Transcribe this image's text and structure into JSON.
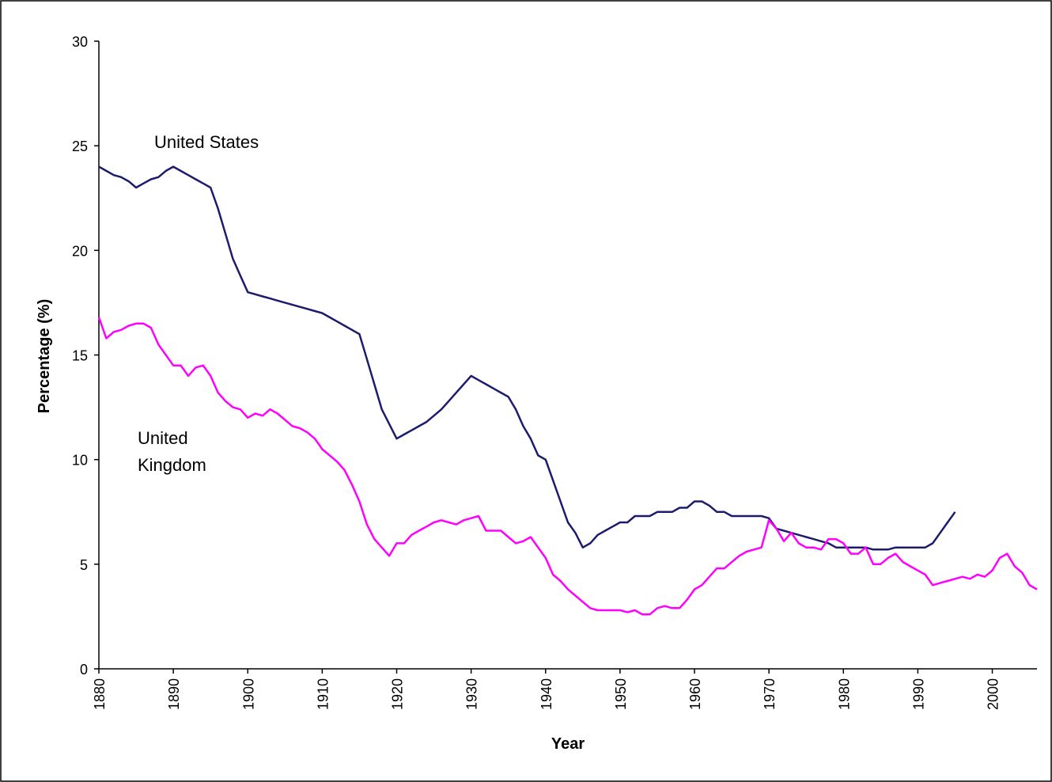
{
  "chart_data": {
    "type": "line",
    "xlabel": "Year",
    "ylabel": "Percentage (%)",
    "annotations": [
      "United States",
      "United",
      "Kingdom"
    ],
    "x": [
      1880,
      1881,
      1882,
      1883,
      1884,
      1885,
      1886,
      1887,
      1888,
      1889,
      1890,
      1891,
      1892,
      1893,
      1894,
      1895,
      1896,
      1897,
      1898,
      1899,
      1900,
      1901,
      1902,
      1903,
      1904,
      1905,
      1906,
      1907,
      1908,
      1909,
      1910,
      1911,
      1912,
      1913,
      1914,
      1915,
      1916,
      1917,
      1918,
      1919,
      1920,
      1921,
      1922,
      1923,
      1924,
      1925,
      1926,
      1927,
      1928,
      1929,
      1930,
      1931,
      1932,
      1933,
      1934,
      1935,
      1936,
      1937,
      1938,
      1939,
      1940,
      1941,
      1942,
      1943,
      1944,
      1945,
      1946,
      1947,
      1948,
      1949,
      1950,
      1951,
      1952,
      1953,
      1954,
      1955,
      1956,
      1957,
      1958,
      1959,
      1960,
      1961,
      1962,
      1963,
      1964,
      1965,
      1966,
      1967,
      1968,
      1969,
      1970,
      1971,
      1972,
      1973,
      1974,
      1975,
      1976,
      1977,
      1978,
      1979,
      1980,
      1981,
      1982,
      1983,
      1984,
      1985,
      1986,
      1987,
      1988,
      1989,
      1990,
      1991,
      1992,
      1993,
      1994,
      1995,
      1996,
      1997,
      1998,
      1999,
      2000,
      2001,
      2002,
      2003,
      2004,
      2005,
      2006
    ],
    "series": [
      {
        "name": "United States",
        "color": "#1c1c6e",
        "values": [
          24.0,
          23.8,
          23.6,
          23.5,
          23.3,
          23.0,
          23.2,
          23.4,
          23.5,
          23.8,
          24.0,
          23.8,
          23.6,
          23.4,
          23.2,
          23.0,
          22.0,
          20.8,
          19.6,
          18.8,
          18.0,
          17.9,
          17.8,
          17.7,
          17.6,
          17.5,
          17.4,
          17.3,
          17.2,
          17.1,
          17.0,
          16.8,
          16.6,
          16.4,
          16.2,
          16.0,
          14.8,
          13.6,
          12.4,
          11.7,
          11.0,
          11.2,
          11.4,
          11.6,
          11.8,
          12.1,
          12.4,
          12.8,
          13.2,
          13.6,
          14.0,
          13.8,
          13.6,
          13.4,
          13.2,
          13.0,
          12.4,
          11.6,
          11.0,
          10.2,
          10.0,
          9.0,
          8.0,
          7.0,
          6.5,
          5.8,
          6.0,
          6.4,
          6.6,
          6.8,
          7.0,
          7.0,
          7.3,
          7.3,
          7.3,
          7.5,
          7.5,
          7.5,
          7.7,
          7.7,
          8.0,
          8.0,
          7.8,
          7.5,
          7.5,
          7.3,
          7.3,
          7.3,
          7.3,
          7.3,
          7.2,
          6.7,
          6.6,
          6.5,
          6.4,
          6.3,
          6.2,
          6.1,
          6.0,
          5.8,
          5.8,
          5.8,
          5.8,
          5.8,
          5.7,
          5.7,
          5.7,
          5.8,
          5.8,
          5.8,
          5.8,
          5.8,
          6.0,
          6.5,
          7.0,
          7.5,
          null,
          null,
          null,
          null,
          null,
          null,
          null,
          null,
          null,
          null,
          null
        ]
      },
      {
        "name": "United Kingdom",
        "color": "#ff00ff",
        "values": [
          16.8,
          15.8,
          16.1,
          16.2,
          16.4,
          16.5,
          16.5,
          16.3,
          15.5,
          15.0,
          14.5,
          14.5,
          14.0,
          14.4,
          14.5,
          14.0,
          13.2,
          12.8,
          12.5,
          12.4,
          12.0,
          12.2,
          12.1,
          12.4,
          12.2,
          11.9,
          11.6,
          11.5,
          11.3,
          11.0,
          10.5,
          10.2,
          9.9,
          9.5,
          8.8,
          8.0,
          6.9,
          6.2,
          5.8,
          5.4,
          6.0,
          6.0,
          6.4,
          6.6,
          6.8,
          7.0,
          7.1,
          7.0,
          6.9,
          7.1,
          7.2,
          7.3,
          6.6,
          6.6,
          6.6,
          6.3,
          6.0,
          6.1,
          6.3,
          5.8,
          5.3,
          4.5,
          4.2,
          3.8,
          3.5,
          3.2,
          2.9,
          2.8,
          2.8,
          2.8,
          2.8,
          2.7,
          2.8,
          2.6,
          2.6,
          2.9,
          3.0,
          2.9,
          2.9,
          3.3,
          3.8,
          4.0,
          4.4,
          4.8,
          4.8,
          5.1,
          5.4,
          5.6,
          5.7,
          5.8,
          7.1,
          6.7,
          6.1,
          6.5,
          6.0,
          5.8,
          5.8,
          5.7,
          6.2,
          6.2,
          6.0,
          5.5,
          5.5,
          5.8,
          5.0,
          5.0,
          5.3,
          5.5,
          5.1,
          4.9,
          4.7,
          4.5,
          4.0,
          4.1,
          4.2,
          4.3,
          4.4,
          4.3,
          4.5,
          4.4,
          4.7,
          5.3,
          5.5,
          4.9,
          4.6,
          4.0,
          3.8
        ]
      }
    ],
    "xlim": [
      1880,
      2006
    ],
    "xticks": [
      1880,
      1890,
      1900,
      1910,
      1920,
      1930,
      1940,
      1950,
      1960,
      1970,
      1980,
      1990,
      2000
    ],
    "ylim": [
      0,
      30
    ],
    "yticks": [
      0,
      5,
      10,
      15,
      20,
      25,
      30
    ],
    "grid": false
  }
}
